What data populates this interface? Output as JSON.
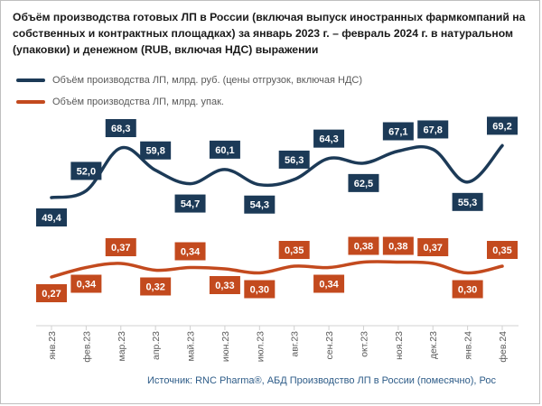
{
  "title": "Объём производства готовых ЛП в России (включая выпуск иностранных фармкомпаний на собственных и контрактных площадках) за январь 2023 г. – февраль 2024 г. в натуральном (упаковки) и денежном (RUB, включая НДС) выражении",
  "source": "Источник: RNC Pharma®, АБД Производство ЛП в России (помесячно), Рос",
  "chart_data": {
    "type": "line",
    "categories": [
      "янв.23",
      "фев.23",
      "мар.23",
      "апр.23",
      "май.23",
      "июн.23",
      "июл.23",
      "авг.23",
      "сен.23",
      "окт.23",
      "ноя.23",
      "дек.23",
      "янв.24",
      "фев.24"
    ],
    "series": [
      {
        "name": "Объём производства ЛП, млрд. руб. (цены отгрузок, включая НДС)",
        "color": "#1c3a57",
        "values": [
          49.4,
          52.0,
          68.3,
          59.8,
          54.7,
          60.1,
          54.3,
          56.3,
          64.3,
          62.5,
          67.1,
          67.8,
          55.3,
          69.2
        ],
        "labels": [
          "49,4",
          "52,0",
          "68,3",
          "59,8",
          "54,7",
          "60,1",
          "54,3",
          "56,3",
          "64,3",
          "62,5",
          "67,1",
          "67,8",
          "55,3",
          "69,2"
        ]
      },
      {
        "name": "Объём производства ЛП, млрд. упак.",
        "color": "#c34a1e",
        "values": [
          0.27,
          0.34,
          0.37,
          0.32,
          0.34,
          0.33,
          0.3,
          0.35,
          0.34,
          0.38,
          0.38,
          0.37,
          0.3,
          0.35
        ],
        "labels": [
          "0,27",
          "0,34",
          "0,37",
          "0,32",
          "0,34",
          "0,33",
          "0,30",
          "0,35",
          "0,34",
          "0,38",
          "0,38",
          "0,37",
          "0,30",
          "0,35"
        ]
      }
    ],
    "grid": false,
    "legend_position": "top-left"
  }
}
